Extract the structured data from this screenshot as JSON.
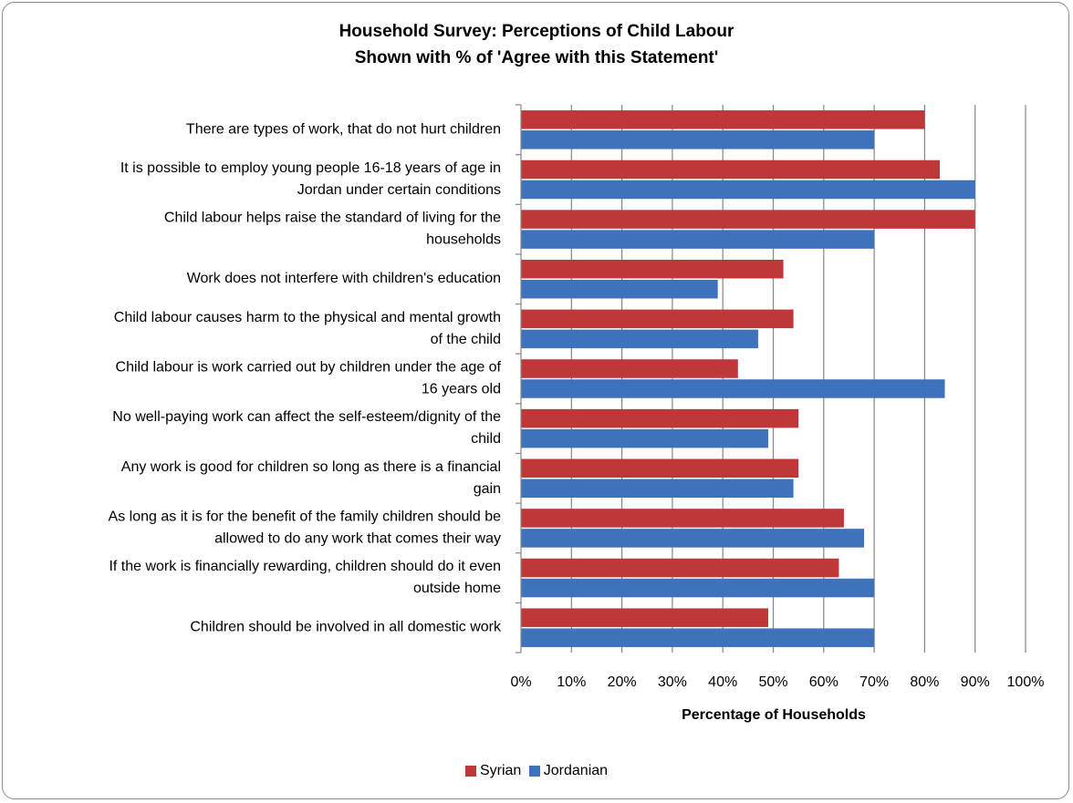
{
  "chart_data": {
    "type": "bar",
    "orientation": "horizontal",
    "title": [
      "Household Survey: Perceptions of Child Labour",
      "Shown with % of 'Agree with this Statement'"
    ],
    "xlabel": "Percentage of Households",
    "ylabel": "",
    "xlim": [
      0,
      100
    ],
    "x_ticks": [
      "0%",
      "10%",
      "20%",
      "30%",
      "40%",
      "50%",
      "60%",
      "70%",
      "80%",
      "90%",
      "100%"
    ],
    "grid": "vertical",
    "legend_position": "bottom",
    "categories": [
      [
        "There are types of work, that do not hurt children"
      ],
      [
        "It is possible to employ young people 16-18 years of age in",
        "Jordan under certain conditions"
      ],
      [
        "Child labour helps raise the standard of living for the",
        "households"
      ],
      [
        "Work does not interfere with children's education"
      ],
      [
        "Child labour causes harm to the physical and mental growth",
        "of the child"
      ],
      [
        "Child labour is work carried out by children under the age of",
        "16 years old"
      ],
      [
        "No well-paying work can affect the self-esteem/dignity of the",
        "child"
      ],
      [
        "Any work is good for children so long as there is a financial",
        "gain"
      ],
      [
        "As long as it is for the benefit of the family children should be",
        "allowed to do any work that comes their way"
      ],
      [
        "If the work is financially rewarding, children should do it even",
        "outside home"
      ],
      [
        "Children should be involved in all domestic work"
      ]
    ],
    "series": [
      {
        "name": "Syrian",
        "color": "#c0373a",
        "values": [
          80,
          83,
          90,
          52,
          54,
          43,
          55,
          55,
          64,
          63,
          49
        ]
      },
      {
        "name": "Jordanian",
        "color": "#3f72bd",
        "values": [
          70,
          90,
          70,
          39,
          47,
          84,
          49,
          54,
          68,
          70,
          70
        ]
      }
    ]
  }
}
